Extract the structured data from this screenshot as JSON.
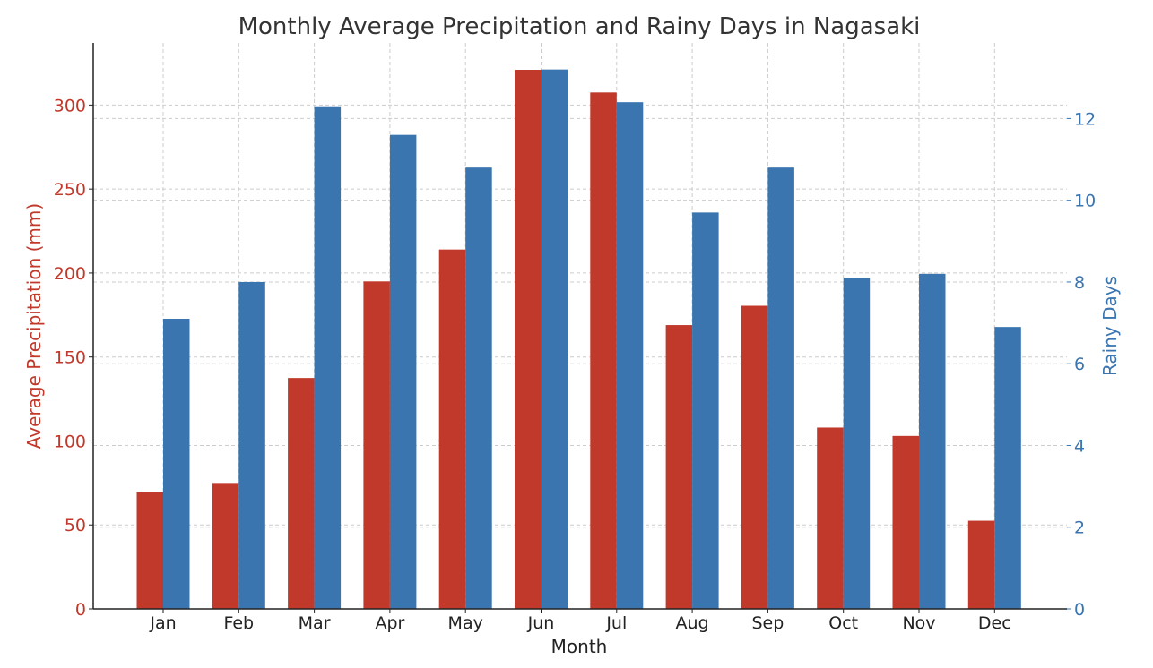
{
  "chart_data": {
    "type": "bar",
    "title": "Monthly Average Precipitation and Rainy Days in Nagasaki",
    "xlabel": "Month",
    "ylabel_left": "Average Precipitation (mm)",
    "ylabel_right": "Rainy Days",
    "categories": [
      "Jan",
      "Feb",
      "Mar",
      "Apr",
      "May",
      "Jun",
      "Jul",
      "Aug",
      "Sep",
      "Oct",
      "Nov",
      "Dec"
    ],
    "series": [
      {
        "name": "Average Precipitation (mm)",
        "axis": "left",
        "color": "#c0392b",
        "values": [
          69.5,
          75.0,
          137.5,
          195.0,
          214.0,
          321.0,
          307.5,
          169.0,
          180.5,
          108.0,
          103.0,
          52.5
        ]
      },
      {
        "name": "Rainy Days",
        "axis": "right",
        "color": "#3a75b0",
        "values": [
          7.1,
          8.0,
          12.3,
          11.6,
          10.8,
          13.2,
          12.4,
          9.7,
          10.8,
          8.1,
          8.2,
          6.9
        ]
      }
    ],
    "ylim_left": [
      0,
      337
    ],
    "ylim_right": [
      0,
      13.85
    ],
    "yticks_left": [
      "0",
      "50",
      "100",
      "150",
      "200",
      "250",
      "300"
    ],
    "yticks_right": [
      "0",
      "2",
      "4",
      "6",
      "8",
      "10",
      "12"
    ],
    "grid": true,
    "axis_colors": {
      "left": "#c0392b",
      "right": "#3a75b0",
      "x": "#222222",
      "title": "#333333"
    }
  }
}
